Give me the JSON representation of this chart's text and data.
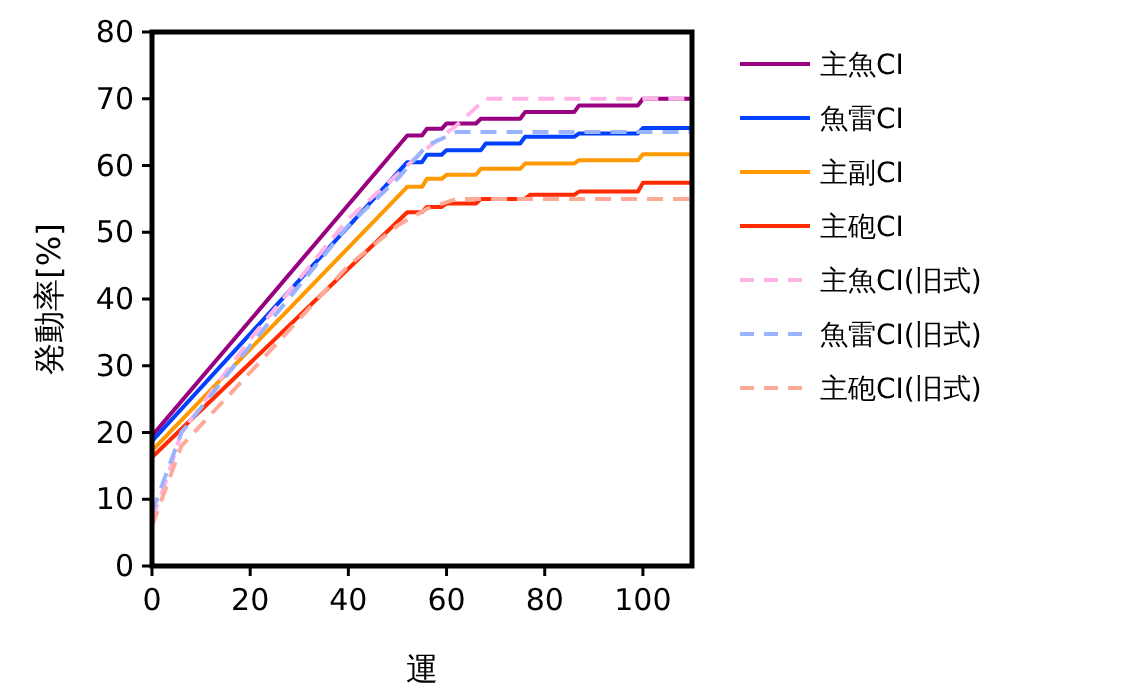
{
  "chart_data": {
    "type": "line",
    "xlabel": "運",
    "ylabel": "発動率[%]",
    "xlim": [
      0,
      110
    ],
    "ylim": [
      0,
      80
    ],
    "xticks": [
      0,
      20,
      40,
      60,
      80,
      100
    ],
    "yticks": [
      0,
      10,
      20,
      30,
      40,
      50,
      60,
      70,
      80
    ],
    "grid": false,
    "legend": "right",
    "marker": "none",
    "series": [
      {
        "name": "主魚CI",
        "color": "#990080",
        "line_style": "solid",
        "x": [
          0,
          52,
          53,
          55,
          56,
          59,
          60,
          66,
          67,
          75,
          76,
          86,
          87,
          99,
          100,
          110
        ],
        "values": [
          19.5,
          64.5,
          64.5,
          64.5,
          65.5,
          65.5,
          66.3,
          66.3,
          67,
          67,
          68,
          68,
          69,
          69,
          70,
          70
        ]
      },
      {
        "name": "魚雷CI",
        "color": "#0040ff",
        "line_style": "solid",
        "x": [
          0,
          52,
          55,
          56,
          59,
          60,
          67,
          68,
          75,
          76,
          86,
          87,
          99,
          100,
          110
        ],
        "values": [
          18.7,
          60.5,
          60.5,
          61.6,
          61.6,
          62.3,
          62.3,
          63.3,
          63.3,
          64.3,
          64.3,
          64.8,
          64.8,
          65.6,
          65.6
        ]
      },
      {
        "name": "主副CI",
        "color": "#ff9900",
        "line_style": "solid",
        "x": [
          0,
          52,
          55,
          56,
          59,
          60,
          66,
          67,
          75,
          76,
          86,
          87,
          99,
          100,
          110
        ],
        "values": [
          17.3,
          56.8,
          56.8,
          58,
          58,
          58.6,
          58.6,
          59.5,
          59.5,
          60.3,
          60.3,
          60.8,
          60.8,
          61.7,
          61.7
        ]
      },
      {
        "name": "主砲CI",
        "color": "#ff2a00",
        "line_style": "solid",
        "x": [
          0,
          52,
          55,
          56,
          59,
          60,
          66,
          67,
          76,
          77,
          86,
          87,
          99,
          100,
          110
        ],
        "values": [
          16.3,
          53,
          53,
          53.8,
          53.8,
          54.3,
          54.3,
          55,
          55,
          55.6,
          55.6,
          56.1,
          56.1,
          57.4,
          57.4
        ]
      },
      {
        "name": "主魚CI(旧式)",
        "color": "#ffb3e6",
        "line_style": "dashed",
        "x": [
          0,
          3,
          6,
          20,
          40,
          55,
          62,
          68,
          110
        ],
        "values": [
          7,
          13,
          20,
          34,
          52,
          62,
          66,
          70,
          70
        ]
      },
      {
        "name": "魚雷CI(旧式)",
        "color": "#99b3ff",
        "line_style": "dashed",
        "x": [
          0,
          3,
          6,
          20,
          40,
          50,
          56,
          62,
          110
        ],
        "values": [
          8,
          14,
          20,
          33,
          51,
          58,
          63,
          65,
          65
        ]
      },
      {
        "name": "主砲CI(旧式)",
        "color": "#ffaa99",
        "line_style": "dashed",
        "x": [
          0,
          3,
          6,
          20,
          40,
          50,
          56,
          62,
          110
        ],
        "values": [
          6,
          12,
          18,
          29,
          45,
          51,
          53.5,
          55,
          55
        ]
      }
    ]
  }
}
